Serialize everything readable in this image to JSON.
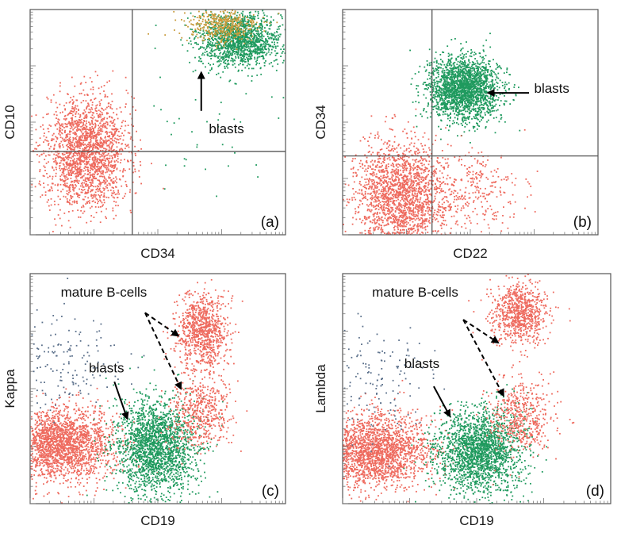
{
  "colors": {
    "blast_population": "#1f9a5e",
    "other_population": "#ee6a5e",
    "minor_population": "#c89a3a",
    "sparse_population": "#5a6f8a",
    "frame": "#555555",
    "gate": "#555555",
    "arrow": "#000000"
  },
  "chart_data": [
    {
      "type": "scatter",
      "panel": "(a)",
      "xlabel": "CD34",
      "ylabel": "CD10",
      "x_scale": "log",
      "y_scale": "log",
      "xlim": [
        0,
        1
      ],
      "ylim": [
        0,
        1
      ],
      "quadrant_gates": {
        "x": 0.4,
        "y": 0.37
      },
      "series": [
        {
          "color": "blast_population",
          "count": 1500,
          "center": [
            0.82,
            0.87
          ],
          "spread": [
            0.08,
            0.06
          ]
        },
        {
          "color": "minor_population",
          "count": 420,
          "center": [
            0.75,
            0.93
          ],
          "spread": [
            0.07,
            0.04
          ]
        },
        {
          "color": "other_population",
          "count": 2000,
          "center": [
            0.22,
            0.37
          ],
          "spread": [
            0.08,
            0.12
          ]
        },
        {
          "color": "blast_population",
          "count": 45,
          "center": [
            0.68,
            0.52
          ],
          "spread": [
            0.15,
            0.15
          ]
        }
      ],
      "annotations": [
        {
          "text": "blasts",
          "text_at": [
            0.7,
            0.45
          ],
          "arrow_from": [
            0.67,
            0.55
          ],
          "arrow_to": [
            0.67,
            0.72
          ],
          "dashed": false
        }
      ]
    },
    {
      "type": "scatter",
      "panel": "(b)",
      "xlabel": "CD22",
      "ylabel": "CD34",
      "x_scale": "log",
      "y_scale": "log",
      "xlim": [
        0,
        1
      ],
      "ylim": [
        0,
        1
      ],
      "quadrant_gates": {
        "x": 0.35,
        "y": 0.35
      },
      "series": [
        {
          "color": "blast_population",
          "count": 2100,
          "center": [
            0.47,
            0.65
          ],
          "spread": [
            0.07,
            0.07
          ]
        },
        {
          "color": "other_population",
          "count": 2000,
          "center": [
            0.22,
            0.17
          ],
          "spread": [
            0.09,
            0.12
          ]
        },
        {
          "color": "other_population",
          "count": 300,
          "center": [
            0.5,
            0.2
          ],
          "spread": [
            0.1,
            0.09
          ]
        }
      ],
      "annotations": [
        {
          "text": "blasts",
          "text_at": [
            0.75,
            0.63
          ],
          "arrow_from": [
            0.73,
            0.63
          ],
          "arrow_to": [
            0.57,
            0.63
          ],
          "dashed": false
        }
      ]
    },
    {
      "type": "scatter",
      "panel": "(c)",
      "xlabel": "CD19",
      "ylabel": "Kappa",
      "x_scale": "log",
      "y_scale": "log",
      "xlim": [
        0,
        1
      ],
      "ylim": [
        0,
        1
      ],
      "series": [
        {
          "color": "other_population",
          "count": 2100,
          "center": [
            0.12,
            0.26
          ],
          "spread": [
            0.1,
            0.08
          ]
        },
        {
          "color": "blast_population",
          "count": 2000,
          "center": [
            0.49,
            0.25
          ],
          "spread": [
            0.08,
            0.1
          ]
        },
        {
          "color": "other_population",
          "count": 900,
          "center": [
            0.67,
            0.75
          ],
          "spread": [
            0.05,
            0.08
          ]
        },
        {
          "color": "other_population",
          "count": 500,
          "center": [
            0.66,
            0.4
          ],
          "spread": [
            0.06,
            0.08
          ]
        },
        {
          "color": "sparse_population",
          "count": 160,
          "center": [
            0.12,
            0.6
          ],
          "spread": [
            0.11,
            0.12
          ]
        }
      ],
      "annotations": [
        {
          "text": "mature B-cells",
          "text_at": [
            0.12,
            0.9
          ],
          "arrow_from": [
            0.45,
            0.83
          ],
          "arrow_to": [
            0.58,
            0.73
          ],
          "dashed": true
        },
        {
          "text": "",
          "arrow_from": [
            0.45,
            0.83
          ],
          "arrow_to": [
            0.59,
            0.5
          ],
          "dashed": true
        },
        {
          "text": "blasts",
          "text_at": [
            0.23,
            0.57
          ],
          "arrow_from": [
            0.33,
            0.53
          ],
          "arrow_to": [
            0.38,
            0.37
          ],
          "dashed": false
        }
      ]
    },
    {
      "type": "scatter",
      "panel": "(d)",
      "xlabel": "CD19",
      "ylabel": "Lambda",
      "x_scale": "log",
      "y_scale": "log",
      "xlim": [
        0,
        1
      ],
      "ylim": [
        0,
        1
      ],
      "series": [
        {
          "color": "other_population",
          "count": 2100,
          "center": [
            0.12,
            0.23
          ],
          "spread": [
            0.1,
            0.08
          ]
        },
        {
          "color": "blast_population",
          "count": 2000,
          "center": [
            0.51,
            0.23
          ],
          "spread": [
            0.08,
            0.09
          ]
        },
        {
          "color": "other_population",
          "count": 800,
          "center": [
            0.66,
            0.83
          ],
          "spread": [
            0.05,
            0.07
          ]
        },
        {
          "color": "other_population",
          "count": 500,
          "center": [
            0.66,
            0.38
          ],
          "spread": [
            0.06,
            0.08
          ]
        },
        {
          "color": "sparse_population",
          "count": 160,
          "center": [
            0.12,
            0.55
          ],
          "spread": [
            0.11,
            0.12
          ]
        }
      ],
      "annotations": [
        {
          "text": "mature B-cells",
          "text_at": [
            0.11,
            0.9
          ],
          "arrow_from": [
            0.45,
            0.8
          ],
          "arrow_to": [
            0.58,
            0.7
          ],
          "dashed": true
        },
        {
          "text": "",
          "arrow_from": [
            0.45,
            0.8
          ],
          "arrow_to": [
            0.6,
            0.47
          ],
          "dashed": true
        },
        {
          "text": "blasts",
          "text_at": [
            0.23,
            0.59
          ],
          "arrow_from": [
            0.34,
            0.51
          ],
          "arrow_to": [
            0.4,
            0.38
          ],
          "dashed": false
        }
      ]
    }
  ]
}
